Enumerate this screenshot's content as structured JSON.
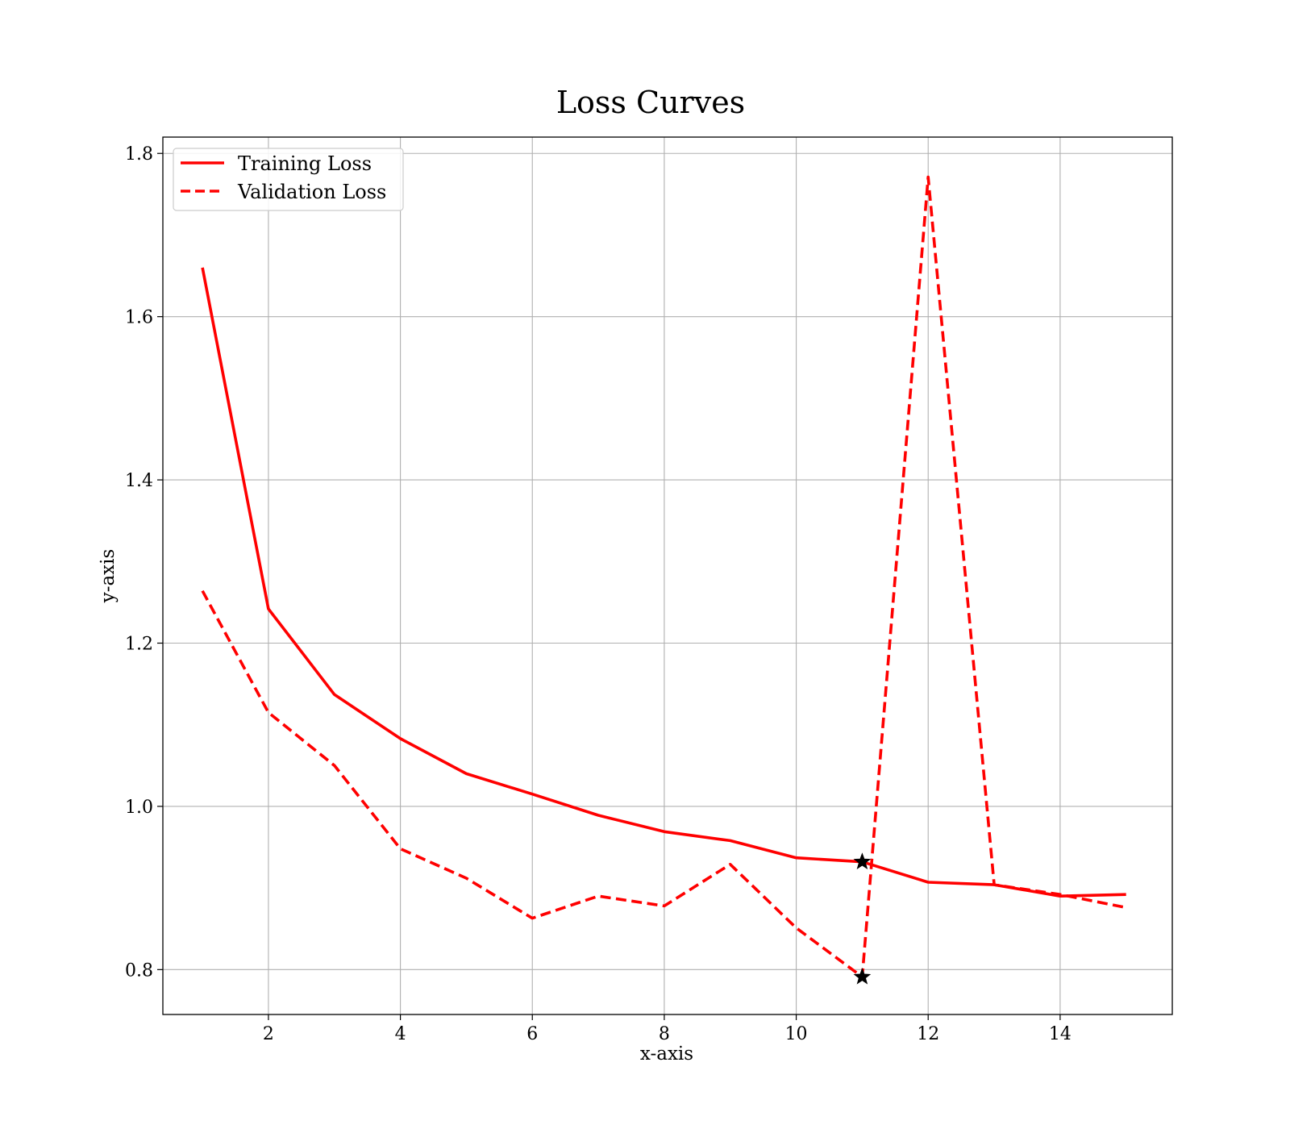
{
  "chart_data": {
    "type": "line",
    "title": "Loss Curves",
    "xlabel": "x-axis",
    "ylabel": "y-axis",
    "xlim": [
      0.4,
      15.7
    ],
    "ylim": [
      0.745,
      1.82
    ],
    "xticks": [
      2,
      4,
      6,
      8,
      10,
      12,
      14
    ],
    "yticks": [
      0.8,
      1.0,
      1.2,
      1.4,
      1.6,
      1.8
    ],
    "xtick_labels": [
      "2",
      "4",
      "6",
      "8",
      "10",
      "12",
      "14"
    ],
    "ytick_labels": [
      "0.8",
      "1.0",
      "1.2",
      "1.4",
      "1.6",
      "1.8"
    ],
    "grid": true,
    "legend_position": "top-left",
    "x": [
      1,
      2,
      3,
      4,
      5,
      6,
      7,
      8,
      9,
      10,
      11,
      12,
      13,
      14,
      15
    ],
    "series": [
      {
        "name": "Training Loss",
        "style": "solid",
        "color": "#ff0000",
        "values": [
          1.66,
          1.242,
          1.137,
          1.083,
          1.04,
          1.015,
          0.989,
          0.969,
          0.958,
          0.937,
          0.932,
          0.907,
          0.904,
          0.89,
          0.892
        ]
      },
      {
        "name": "Validation Loss",
        "style": "dashed",
        "color": "#ff0000",
        "values": [
          1.264,
          1.115,
          1.05,
          0.948,
          0.912,
          0.863,
          0.89,
          0.878,
          0.929,
          0.851,
          0.791,
          1.771,
          0.904,
          0.892,
          0.876
        ]
      }
    ],
    "markers": [
      {
        "x": 11,
        "y": 0.932,
        "symbol": "star",
        "color": "#000000"
      },
      {
        "x": 11,
        "y": 0.791,
        "symbol": "star",
        "color": "#000000"
      }
    ]
  }
}
